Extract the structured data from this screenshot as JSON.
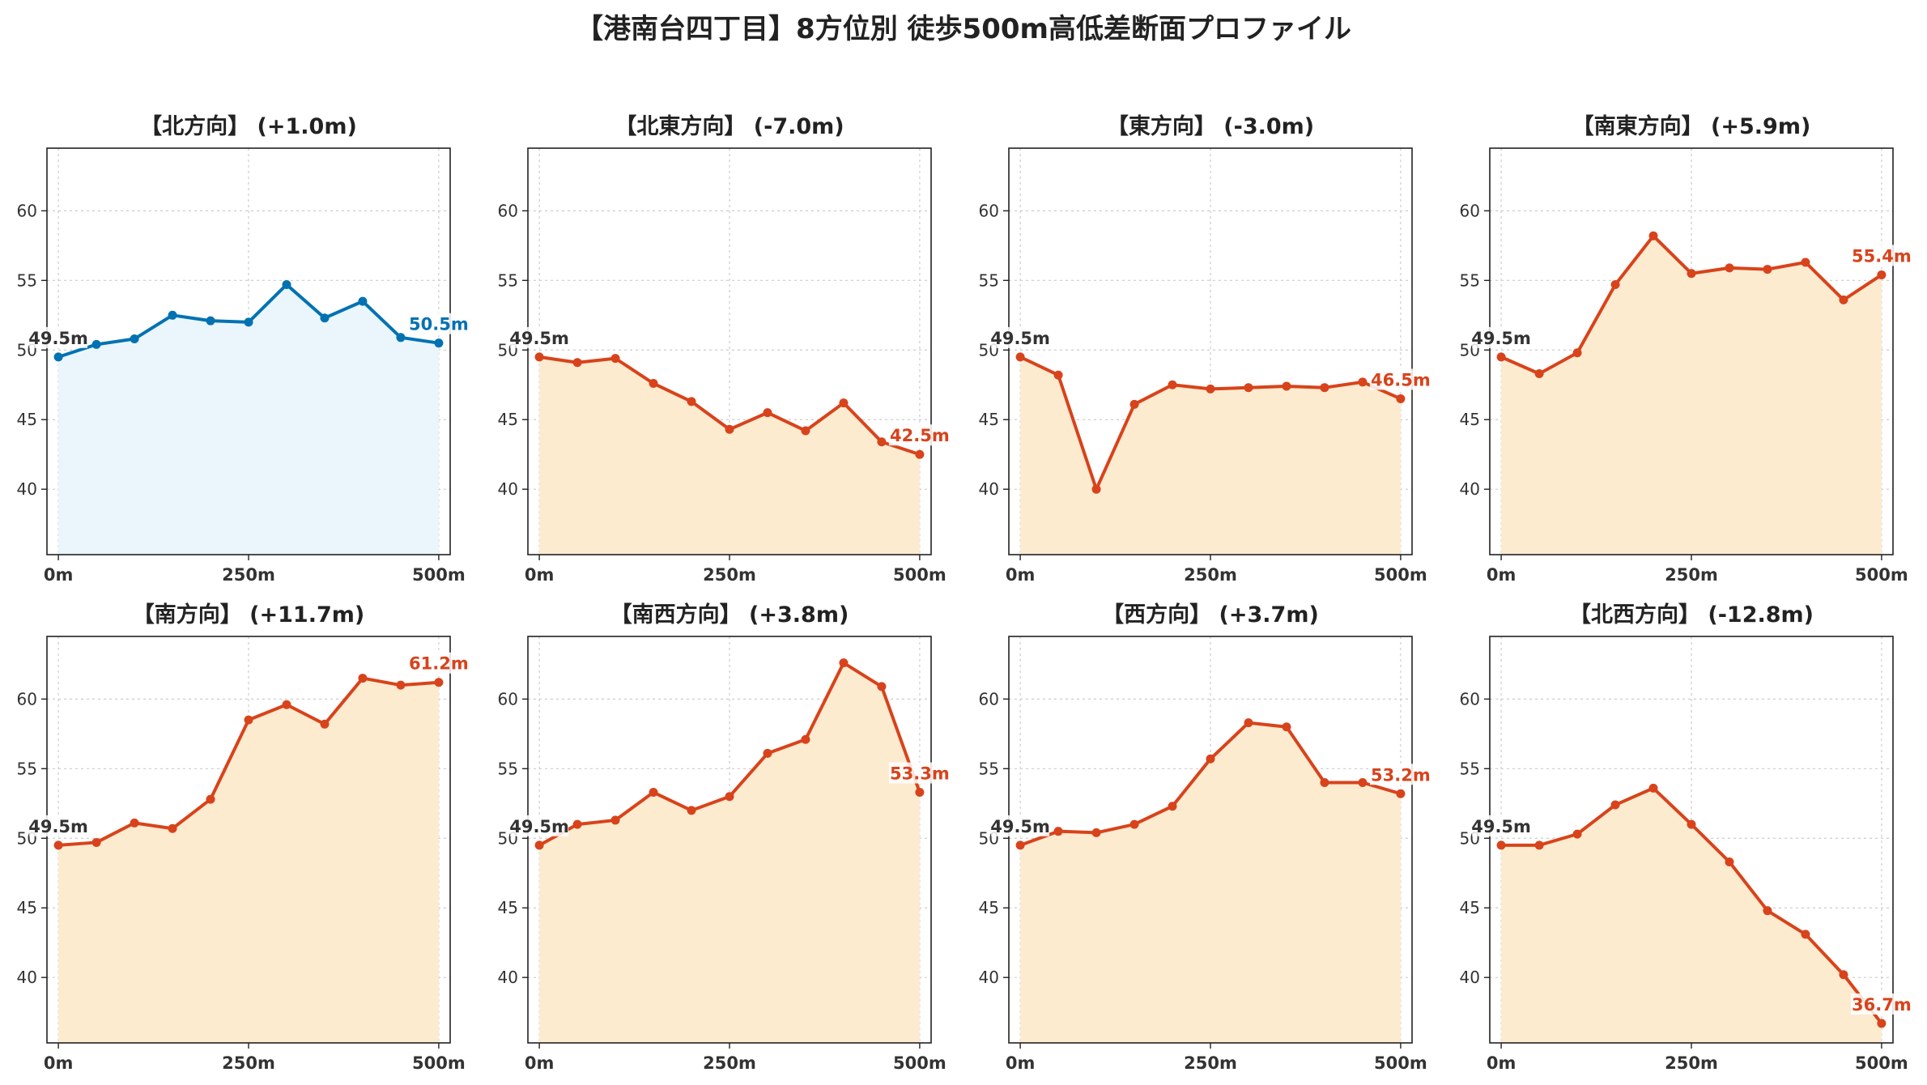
{
  "title": "【港南台四丁目】8方位別 徒歩500m高低差断面プロファイル",
  "colors": {
    "up_line": "#0072b2",
    "up_fill": "#eaf6fc",
    "down_line": "#d8431b",
    "down_fill": "#fdebd0",
    "start_label": "#333333",
    "grid": "#cccccc"
  },
  "chart_data": [
    {
      "type": "area",
      "title": "【北方向】 (+1.0m)",
      "style": "up",
      "x": [
        0,
        50,
        100,
        150,
        200,
        250,
        300,
        350,
        400,
        450,
        500
      ],
      "y": [
        49.5,
        50.4,
        50.8,
        52.5,
        52.1,
        52.0,
        54.7,
        52.3,
        53.5,
        50.9,
        50.5
      ],
      "start_label": "49.5m",
      "end_label": "50.5m",
      "xticks": [
        "0m",
        "250m",
        "500m"
      ],
      "yticks": [
        "40",
        "45",
        "50",
        "55",
        "60"
      ],
      "xlim": [
        -15,
        515
      ],
      "ylim": [
        35.3,
        64.5
      ],
      "grid": true
    },
    {
      "type": "area",
      "title": "【北東方向】 (-7.0m)",
      "style": "down",
      "x": [
        0,
        50,
        100,
        150,
        200,
        250,
        300,
        350,
        400,
        450,
        500
      ],
      "y": [
        49.5,
        49.1,
        49.4,
        47.6,
        46.3,
        44.3,
        45.5,
        44.2,
        46.2,
        43.4,
        42.5
      ],
      "start_label": "49.5m",
      "end_label": "42.5m",
      "xticks": [
        "0m",
        "250m",
        "500m"
      ],
      "yticks": [
        "40",
        "45",
        "50",
        "55",
        "60"
      ],
      "xlim": [
        -15,
        515
      ],
      "ylim": [
        35.3,
        64.5
      ],
      "grid": true
    },
    {
      "type": "area",
      "title": "【東方向】 (-3.0m)",
      "style": "down",
      "x": [
        0,
        50,
        100,
        150,
        200,
        250,
        300,
        350,
        400,
        450,
        500
      ],
      "y": [
        49.5,
        48.2,
        40.0,
        46.1,
        47.5,
        47.2,
        47.3,
        47.4,
        47.3,
        47.7,
        46.5
      ],
      "start_label": "49.5m",
      "end_label": "46.5m",
      "xticks": [
        "0m",
        "250m",
        "500m"
      ],
      "yticks": [
        "40",
        "45",
        "50",
        "55",
        "60"
      ],
      "xlim": [
        -15,
        515
      ],
      "ylim": [
        35.3,
        64.5
      ],
      "grid": true
    },
    {
      "type": "area",
      "title": "【南東方向】 (+5.9m)",
      "style": "down",
      "x": [
        0,
        50,
        100,
        150,
        200,
        250,
        300,
        350,
        400,
        450,
        500
      ],
      "y": [
        49.5,
        48.3,
        49.8,
        54.7,
        58.2,
        55.5,
        55.9,
        55.8,
        56.3,
        53.6,
        55.4
      ],
      "start_label": "49.5m",
      "end_label": "55.4m",
      "xticks": [
        "0m",
        "250m",
        "500m"
      ],
      "yticks": [
        "40",
        "45",
        "50",
        "55",
        "60"
      ],
      "xlim": [
        -15,
        515
      ],
      "ylim": [
        35.3,
        64.5
      ],
      "grid": true
    },
    {
      "type": "area",
      "title": "【南方向】 (+11.7m)",
      "style": "down",
      "x": [
        0,
        50,
        100,
        150,
        200,
        250,
        300,
        350,
        400,
        450,
        500
      ],
      "y": [
        49.5,
        49.7,
        51.1,
        50.7,
        52.8,
        58.5,
        59.6,
        58.2,
        61.5,
        61.0,
        61.2
      ],
      "start_label": "49.5m",
      "end_label": "61.2m",
      "xticks": [
        "0m",
        "250m",
        "500m"
      ],
      "yticks": [
        "40",
        "45",
        "50",
        "55",
        "60"
      ],
      "xlim": [
        -15,
        515
      ],
      "ylim": [
        35.3,
        64.5
      ],
      "grid": true
    },
    {
      "type": "area",
      "title": "【南西方向】 (+3.8m)",
      "style": "down",
      "x": [
        0,
        50,
        100,
        150,
        200,
        250,
        300,
        350,
        400,
        450,
        500
      ],
      "y": [
        49.5,
        51.0,
        51.3,
        53.3,
        52.0,
        53.0,
        56.1,
        57.1,
        62.6,
        60.9,
        53.3
      ],
      "start_label": "49.5m",
      "end_label": "53.3m",
      "xticks": [
        "0m",
        "250m",
        "500m"
      ],
      "yticks": [
        "40",
        "45",
        "50",
        "55",
        "60"
      ],
      "xlim": [
        -15,
        515
      ],
      "ylim": [
        35.3,
        64.5
      ],
      "grid": true
    },
    {
      "type": "area",
      "title": "【西方向】 (+3.7m)",
      "style": "down",
      "x": [
        0,
        50,
        100,
        150,
        200,
        250,
        300,
        350,
        400,
        450,
        500
      ],
      "y": [
        49.5,
        50.5,
        50.4,
        51.0,
        52.3,
        55.7,
        58.3,
        58.0,
        54.0,
        54.0,
        53.2
      ],
      "start_label": "49.5m",
      "end_label": "53.2m",
      "xticks": [
        "0m",
        "250m",
        "500m"
      ],
      "yticks": [
        "40",
        "45",
        "50",
        "55",
        "60"
      ],
      "xlim": [
        -15,
        515
      ],
      "ylim": [
        35.3,
        64.5
      ],
      "grid": true
    },
    {
      "type": "area",
      "title": "【北西方向】 (-12.8m)",
      "style": "down",
      "x": [
        0,
        50,
        100,
        150,
        200,
        250,
        300,
        350,
        400,
        450,
        500
      ],
      "y": [
        49.5,
        49.5,
        50.3,
        52.4,
        53.6,
        51.0,
        48.3,
        44.8,
        43.1,
        40.2,
        36.7
      ],
      "start_label": "49.5m",
      "end_label": "36.7m",
      "xticks": [
        "0m",
        "250m",
        "500m"
      ],
      "yticks": [
        "40",
        "45",
        "50",
        "55",
        "60"
      ],
      "xlim": [
        -15,
        515
      ],
      "ylim": [
        35.3,
        64.5
      ],
      "grid": true
    }
  ]
}
